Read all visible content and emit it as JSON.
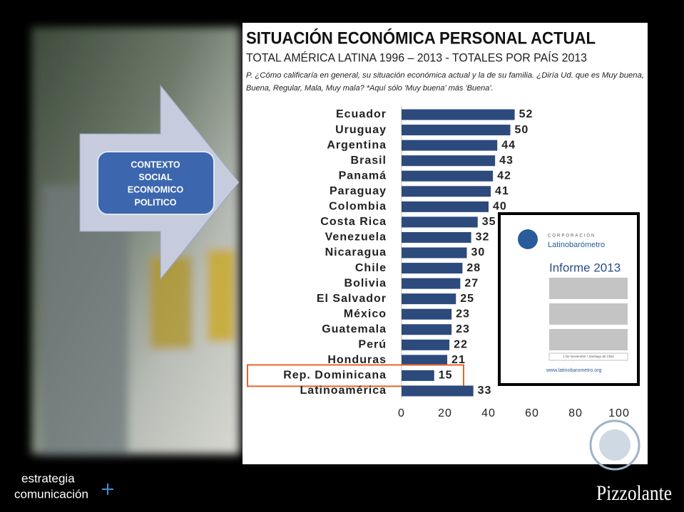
{
  "chart_data": {
    "type": "hbar",
    "title": "SITUACIÓN ECONÓMICA PERSONAL ACTUAL",
    "subtitle": "TOTAL AMÉRICA LATINA 1996 – 2013 - TOTALES POR PAÍS 2013",
    "question": [
      "P. ¿Cómo calificaría en general, su situación económica actual y la de su familia. ¿Diría Ud. que es Muy buena,",
      "Buena, Regular, Mala, Muy mala? *Aquí sólo 'Muy buena' más 'Buena'."
    ],
    "categories": [
      "Ecuador",
      "Uruguay",
      "Argentina",
      "Brasil",
      "Panamá",
      "Paraguay",
      "Colombia",
      "Costa Rica",
      "Venezuela",
      "Nicaragua",
      "Chile",
      "Bolivia",
      "El Salvador",
      "México",
      "Guatemala",
      "Perú",
      "Honduras",
      "Rep. Dominicana",
      "Latinoamérica"
    ],
    "values": [
      52,
      50,
      44,
      43,
      42,
      41,
      40,
      35,
      32,
      30,
      28,
      27,
      25,
      23,
      23,
      22,
      21,
      15,
      33
    ],
    "color": "#2c4a7c",
    "highlighted_category": "Rep. Dominicana",
    "xlim": [
      0,
      100
    ],
    "xticks": [
      0,
      20,
      40,
      60,
      80,
      100
    ]
  },
  "context_box": [
    "CONTEXTO",
    "SOCIAL",
    "ECONOMICO",
    "POLITICO"
  ],
  "report": {
    "org_small": "CORPORACIÓN",
    "org": "Latinobarómetro",
    "title": "Informe 2013",
    "date": "1 De Noviembre / Santiago de Chile",
    "url": "www.latinobarometro.org"
  },
  "footer": {
    "left_logo": [
      "estrategia",
      "comunicación"
    ],
    "right_logo": "Pizzolante"
  }
}
